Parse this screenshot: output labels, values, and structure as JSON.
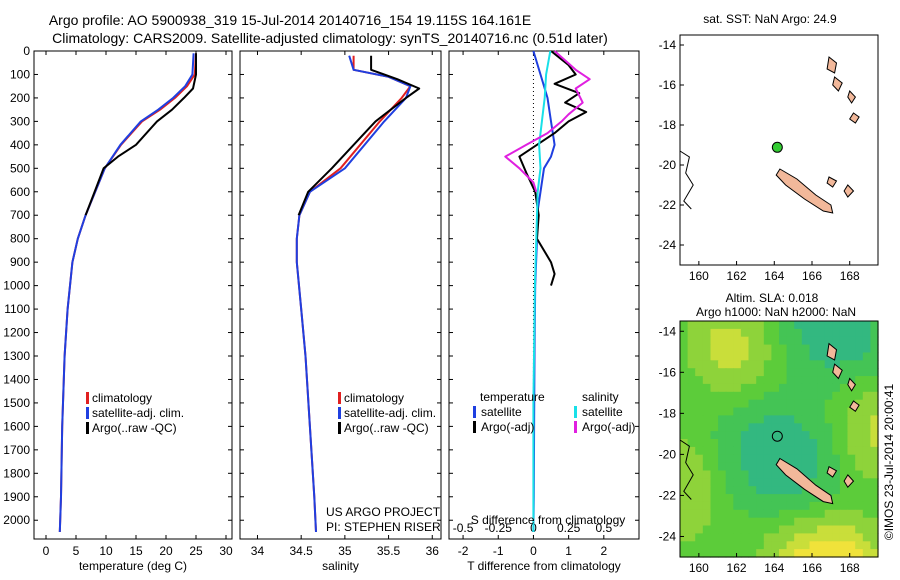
{
  "title": {
    "line1": "Argo profile: AO 5900938_319 15-Jul-2014 20140716_154 19.115S 164.161E",
    "line2": "Climatology: CARS2009. Satellite-adjusted climatology: synTS_20140716.nc (0.51d later)"
  },
  "colors": {
    "climatology": "#e02020",
    "satellite": "#1f3fe0",
    "argo": "#000000",
    "sat_salinity": "#18e0e8",
    "argo_salinity": "#e020e0",
    "land": "#f2b89a",
    "marker": "#33cc33"
  },
  "legend_main": [
    "climatology",
    "satellite-adj. clim.",
    "Argo(..raw -QC)"
  ],
  "legend_diff": {
    "temp_header": "temperature",
    "sal_header": "salinity",
    "temp_items": [
      "satellite",
      "Argo(-adj)"
    ],
    "sal_items": [
      "satellite",
      "Argo(-adj)"
    ]
  },
  "credit": [
    "US ARGO PROJECT",
    "PI: STEPHEN RISER"
  ],
  "map1": {
    "title": "sat. SST: NaN Argo: 24.9"
  },
  "map2": {
    "title_line1": "Altim. SLA: 0.018",
    "title_line2": "Argo h1000: NaN h2000: NaN"
  },
  "side_label": "©IMOS 23-Jul-2014 20:00:41",
  "chart_data": [
    {
      "type": "line",
      "id": "temperature",
      "xlabel": "temperature (deg C)",
      "ylabel": "",
      "xlim": [
        -2,
        31
      ],
      "ylim": [
        2080,
        0
      ],
      "xticks": [
        0,
        5,
        10,
        15,
        20,
        25,
        30
      ],
      "yticks": [
        0,
        100,
        200,
        300,
        400,
        500,
        600,
        700,
        800,
        900,
        1000,
        1100,
        1200,
        1300,
        1400,
        1500,
        1600,
        1700,
        1800,
        1900,
        2000
      ],
      "series": [
        {
          "name": "climatology",
          "role": "climatology",
          "x": [
            25,
            24.8,
            23.5,
            21.5,
            19,
            16,
            12.5,
            9.8,
            8.2,
            6.6,
            5.3,
            4.4,
            3.6,
            3.1,
            2.7,
            2.5,
            2.3
          ],
          "y": [
            10,
            100,
            150,
            200,
            250,
            300,
            400,
            500,
            600,
            700,
            800,
            900,
            1100,
            1300,
            1600,
            1900,
            2050
          ]
        },
        {
          "name": "satellite-adj. clim.",
          "role": "satellite",
          "x": [
            24.6,
            24.4,
            23.2,
            21.2,
            18.7,
            15.8,
            12.4,
            9.8,
            8.2,
            6.6,
            5.3,
            4.4,
            3.6,
            3.1,
            2.7,
            2.5,
            2.3
          ],
          "y": [
            10,
            100,
            150,
            200,
            250,
            300,
            400,
            500,
            600,
            700,
            800,
            900,
            1100,
            1300,
            1600,
            1900,
            2050
          ]
        },
        {
          "name": "Argo(..raw -QC)",
          "role": "argo",
          "x": [
            25,
            25,
            24.5,
            23,
            21,
            18.5,
            15,
            12,
            9.6,
            8.1,
            6.6
          ],
          "y": [
            10,
            100,
            160,
            200,
            250,
            300,
            400,
            450,
            500,
            600,
            700
          ]
        }
      ]
    },
    {
      "type": "line",
      "id": "salinity",
      "xlabel": "salinity",
      "ylabel": "",
      "xlim": [
        33.8,
        36.1
      ],
      "ylim": [
        2080,
        0
      ],
      "xticks": [
        34,
        34.5,
        35,
        35.5,
        36
      ],
      "series": [
        {
          "name": "climatology",
          "role": "climatology",
          "x": [
            35.1,
            35.1,
            35.5,
            35.75,
            35.65,
            35.4,
            34.95,
            34.6,
            34.48,
            34.45,
            34.45,
            34.5,
            34.55,
            34.6,
            34.65,
            34.67
          ],
          "y": [
            20,
            80,
            110,
            150,
            200,
            300,
            500,
            600,
            700,
            800,
            900,
            1100,
            1300,
            1600,
            1900,
            2050
          ]
        },
        {
          "name": "satellite-adj. clim.",
          "role": "satellite",
          "x": [
            35.05,
            35.1,
            35.5,
            35.75,
            35.7,
            35.45,
            35.0,
            34.6,
            34.48,
            34.45,
            34.45,
            34.5,
            34.55,
            34.6,
            34.65,
            34.67
          ],
          "y": [
            20,
            80,
            110,
            150,
            200,
            300,
            500,
            600,
            700,
            800,
            900,
            1100,
            1300,
            1600,
            1900,
            2050
          ]
        },
        {
          "name": "Argo(..raw -QC)",
          "role": "argo",
          "x": [
            35.3,
            35.3,
            35.6,
            35.85,
            35.7,
            35.35,
            34.85,
            34.58,
            34.47
          ],
          "y": [
            20,
            80,
            120,
            160,
            200,
            300,
            500,
            600,
            700
          ]
        }
      ]
    },
    {
      "type": "line",
      "id": "difference",
      "xlabel": "T difference from climatology",
      "xlabel_top": "S difference from climatology",
      "ylabel": "",
      "xlim": [
        -2.4,
        3.0
      ],
      "ylim": [
        2080,
        0
      ],
      "xticks": [
        -2,
        -1,
        0,
        1,
        2
      ],
      "sticks": [
        -0.5,
        -0.25,
        0,
        0.25,
        0.5
      ],
      "s_scale": 4,
      "series": [
        {
          "name": "satellite",
          "group": "temperature",
          "role": "satellite",
          "x": [
            0,
            0.2,
            0.4,
            0.5,
            0.6,
            0.5,
            0.3,
            0.2,
            0.1,
            0.1,
            0.05,
            0.03,
            0.02,
            0.01,
            0
          ],
          "y": [
            0,
            100,
            200,
            300,
            400,
            450,
            500,
            600,
            700,
            800,
            1000,
            1300,
            1600,
            1900,
            2050
          ]
        },
        {
          "name": "Argo(-adj)",
          "group": "temperature",
          "role": "argo",
          "x": [
            0.5,
            1.0,
            1.2,
            0.6,
            1.3,
            0.9,
            1.5,
            1.0,
            0.6,
            0.1,
            -0.4,
            -0.2,
            0.05,
            0.15,
            0.1,
            0.5,
            0.6,
            0.5
          ],
          "y": [
            0,
            60,
            100,
            140,
            180,
            220,
            260,
            300,
            350,
            400,
            450,
            520,
            600,
            700,
            800,
            900,
            950,
            1000
          ]
        },
        {
          "name": "satellite",
          "group": "salinity",
          "role": "sat_salinity",
          "x": [
            0.12,
            0.09,
            0.08,
            0.06,
            0.04,
            0.05,
            0.03,
            0.02,
            0.01,
            0,
            0
          ],
          "y": [
            0,
            100,
            200,
            300,
            400,
            500,
            600,
            800,
            1000,
            1500,
            2050
          ]
        },
        {
          "name": "Argo(-adj)",
          "group": "salinity",
          "role": "argo_salinity",
          "x": [
            0.15,
            0.3,
            0.4,
            0.3,
            0.35,
            0.25,
            0.2,
            0.1,
            -0.05,
            -0.2,
            -0.1,
            0,
            0.02
          ],
          "y": [
            0,
            80,
            120,
            160,
            220,
            270,
            300,
            350,
            400,
            450,
            500,
            560,
            600
          ]
        }
      ]
    },
    {
      "type": "scatter",
      "id": "map1",
      "xlim": [
        159,
        169.5
      ],
      "ylim": [
        -25,
        -13.5
      ],
      "xticks": [
        160,
        162,
        164,
        166,
        168
      ],
      "yticks": [
        -14,
        -16,
        -18,
        -20,
        -22,
        -24
      ],
      "points": [
        {
          "lon": 164.161,
          "lat": -19.115
        }
      ]
    },
    {
      "type": "heatmap",
      "id": "map2",
      "xlim": [
        159,
        169.5
      ],
      "ylim": [
        -25,
        -13.5
      ],
      "xticks": [
        160,
        162,
        164,
        166,
        168
      ],
      "yticks": [
        -14,
        -16,
        -18,
        -20,
        -22,
        -24
      ],
      "points": [
        {
          "lon": 164.161,
          "lat": -19.115
        }
      ]
    }
  ]
}
